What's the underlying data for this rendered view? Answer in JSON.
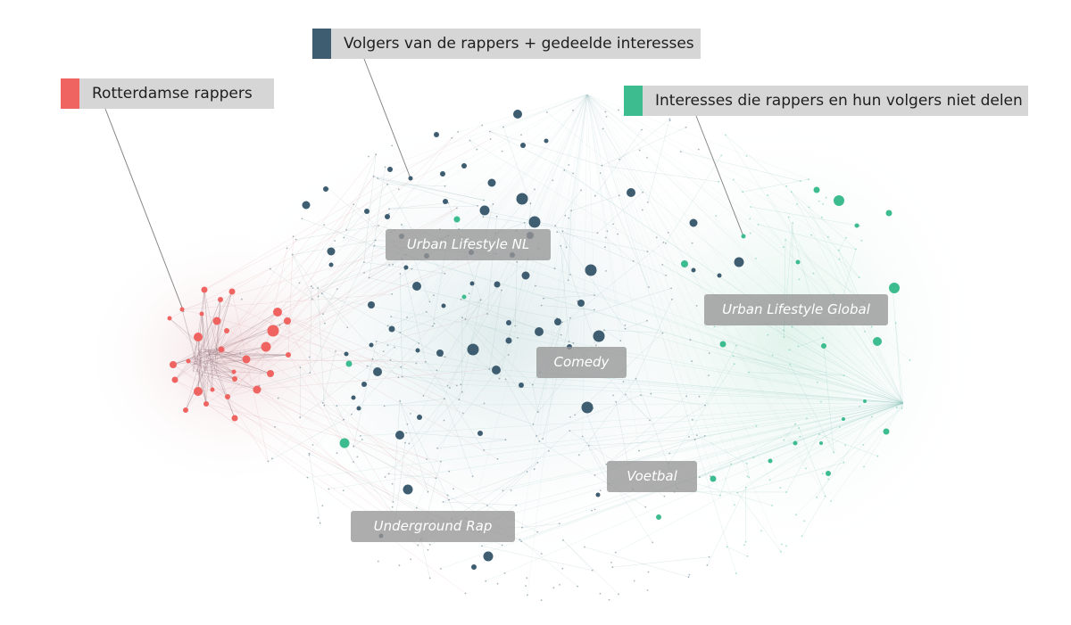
{
  "legend": {
    "rappers": {
      "label": "Rotterdamse rappers",
      "color": "#ef6461"
    },
    "followers": {
      "label": "Volgers van de rappers + gedeelde interesses",
      "color": "#3f5d71"
    },
    "not_shared": {
      "label": "Interesses die rappers en hun volgers niet delen",
      "color": "#3dbd8f"
    }
  },
  "clusters": {
    "urban_nl": "Urban Lifestyle NL",
    "urban_global": "Urban Lifestyle Global",
    "comedy": "Comedy",
    "voetbal": "Voetbal",
    "underground": "Underground Rap"
  },
  "colors": {
    "rappers": "#ef6461",
    "followers": "#3f5d71",
    "not_shared": "#3dbd8f",
    "edge_red": "#d9a0a3",
    "edge_teal": "#8fc8c0",
    "leader_line": "#888888"
  }
}
